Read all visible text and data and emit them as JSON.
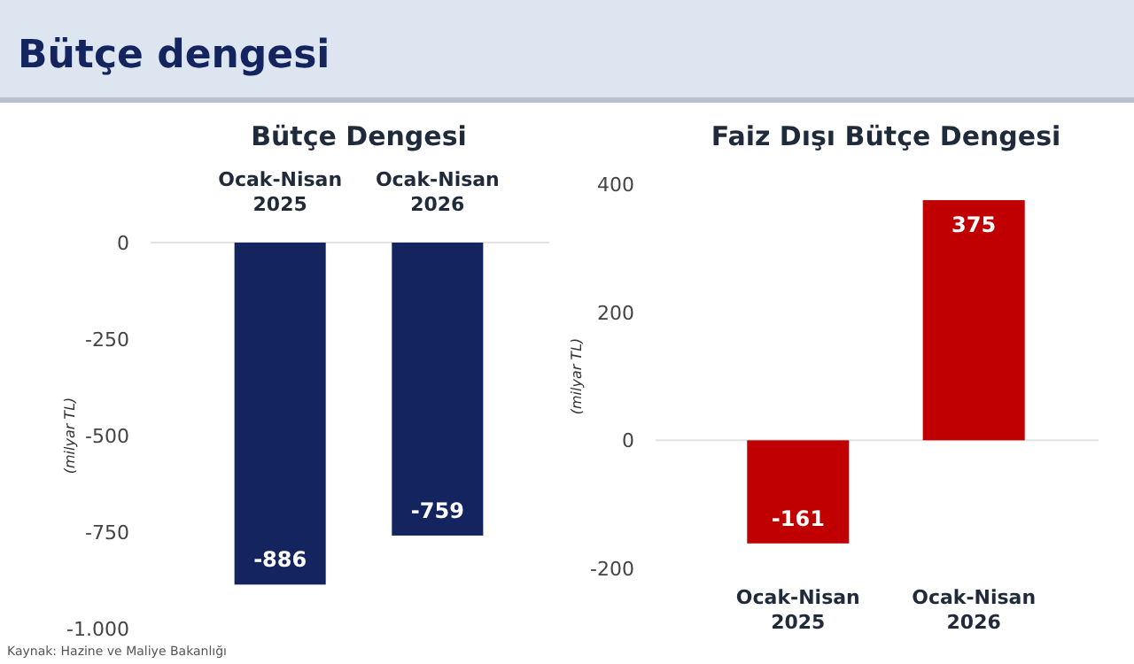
{
  "chart_data": [
    {
      "type": "bar",
      "title": "Bütçe Dengesi",
      "ylabel": "(milyar TL)",
      "categories": [
        "Ocak-Nisan 2025",
        "Ocak-Nisan 2026"
      ],
      "values": [
        -886,
        -759
      ],
      "color": "#14245e",
      "ylim": [
        -1000,
        0
      ],
      "yticks": [
        0,
        -250,
        -500,
        -750,
        {
          "value": -1000,
          "label": "-1.000"
        }
      ],
      "data_labels": true,
      "annotations": [
        "Bütçe dengesi",
        "Kaynak: Hazine ve Maliye Bakanlığı"
      ]
    },
    {
      "type": "bar",
      "title": "Faiz Dışı Bütçe Dengesi",
      "ylabel": "(milyar TL)",
      "categories": [
        "Ocak-Nisan 2025",
        "Ocak-Nisan 2026"
      ],
      "values": [
        -161,
        375
      ],
      "color": "#c00000",
      "ylim": [
        -200,
        400
      ],
      "yticks": [
        -200,
        0,
        200,
        400
      ],
      "data_labels": true
    }
  ]
}
